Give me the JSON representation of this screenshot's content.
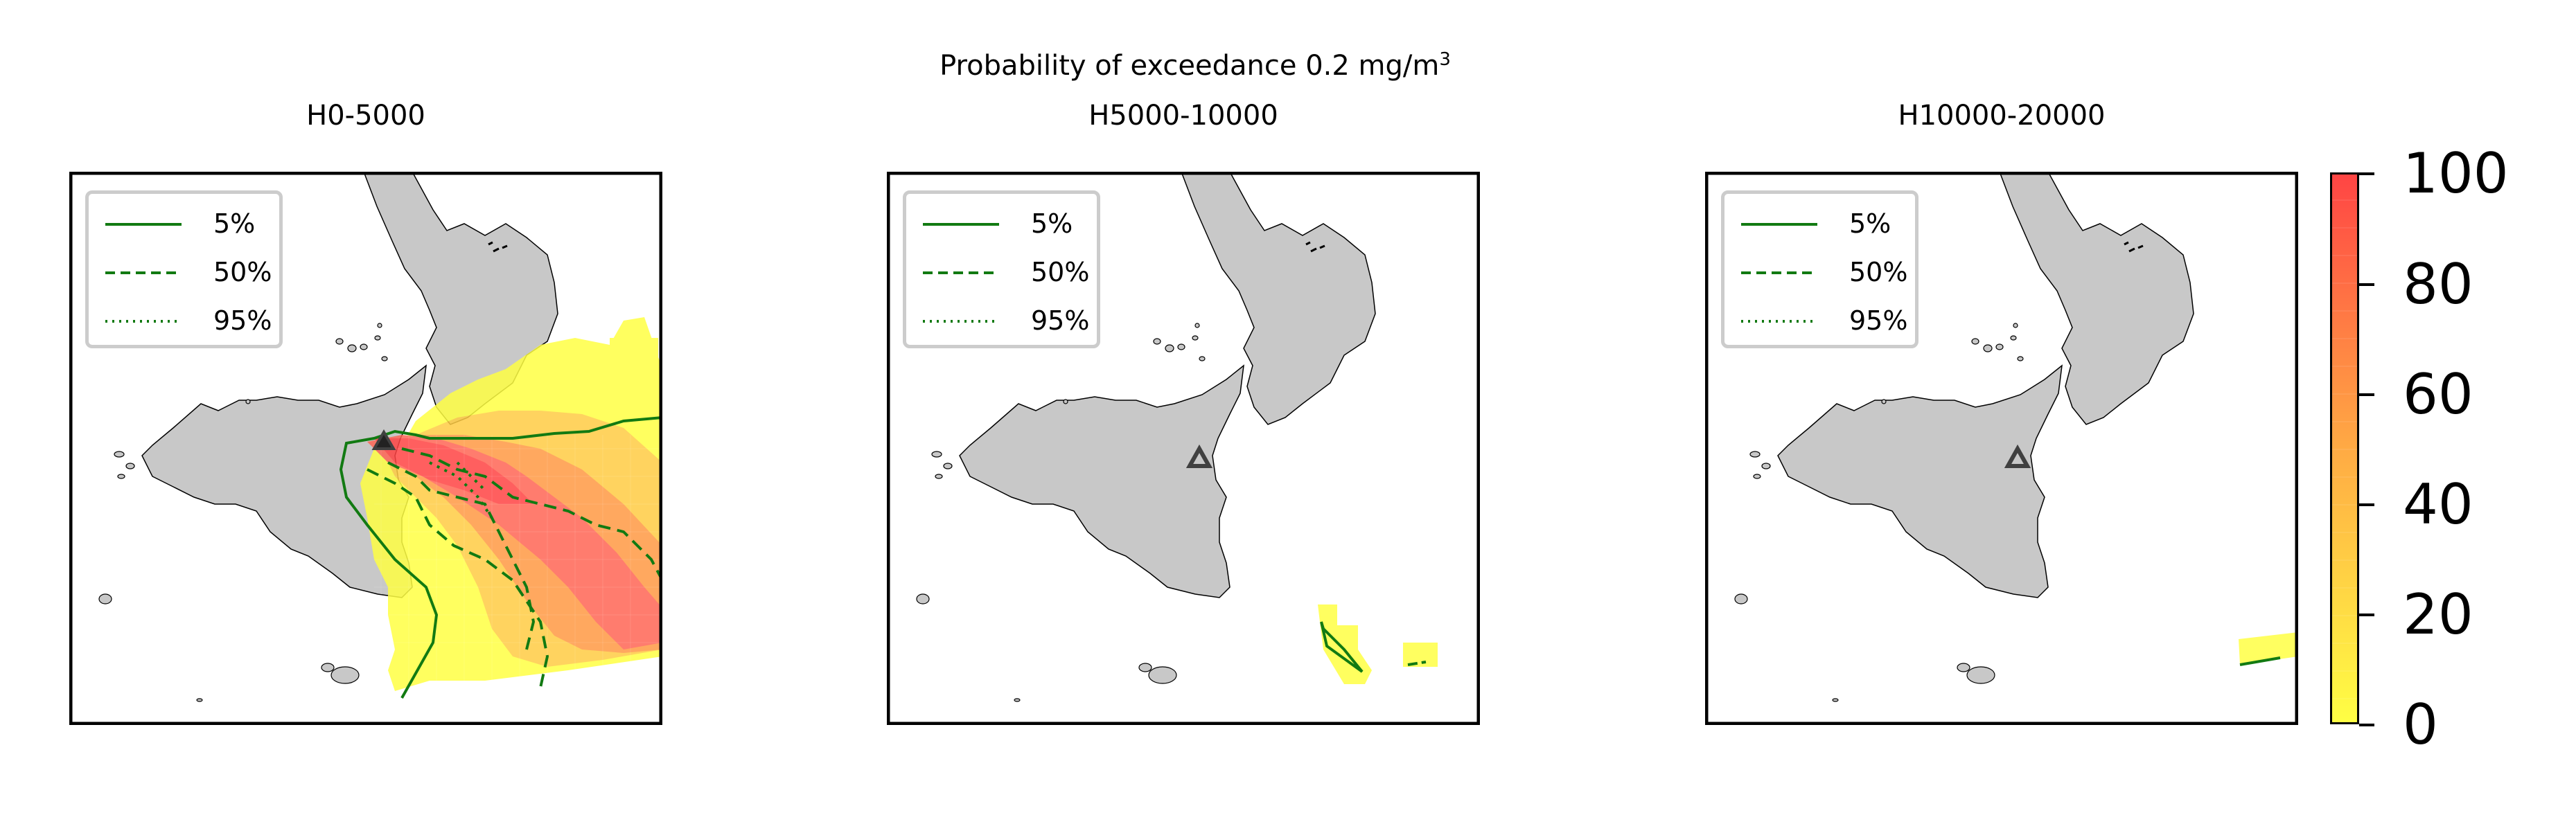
{
  "figure": {
    "suptitle_text": "Probability of exceedance 0.2 mg/m",
    "suptitle_superscript": "3"
  },
  "legend": {
    "items": [
      {
        "label": "5%",
        "linestyle": "solid"
      },
      {
        "label": "50%",
        "linestyle": "dashed"
      },
      {
        "label": "95%",
        "linestyle": "dotted"
      }
    ],
    "contour_color": "#127a12"
  },
  "panels": [
    {
      "title": "H0-5000",
      "layer": "0-5000",
      "max_probability": 100
    },
    {
      "title": "H5000-10000",
      "layer": "5000-10000",
      "max_probability": 15
    },
    {
      "title": "H10000-20000",
      "layer": "10000-20000",
      "max_probability": 5
    }
  ],
  "map_features": {
    "land_color": "#c8c8c8",
    "volcano_marker": "triangle",
    "volcano_color": "#404040"
  },
  "colorbar": {
    "colormap": [
      "#ffff44",
      "#ff4444"
    ],
    "min": 0,
    "max": 100,
    "ticks": [
      "0",
      "20",
      "40",
      "60",
      "80",
      "100"
    ]
  }
}
